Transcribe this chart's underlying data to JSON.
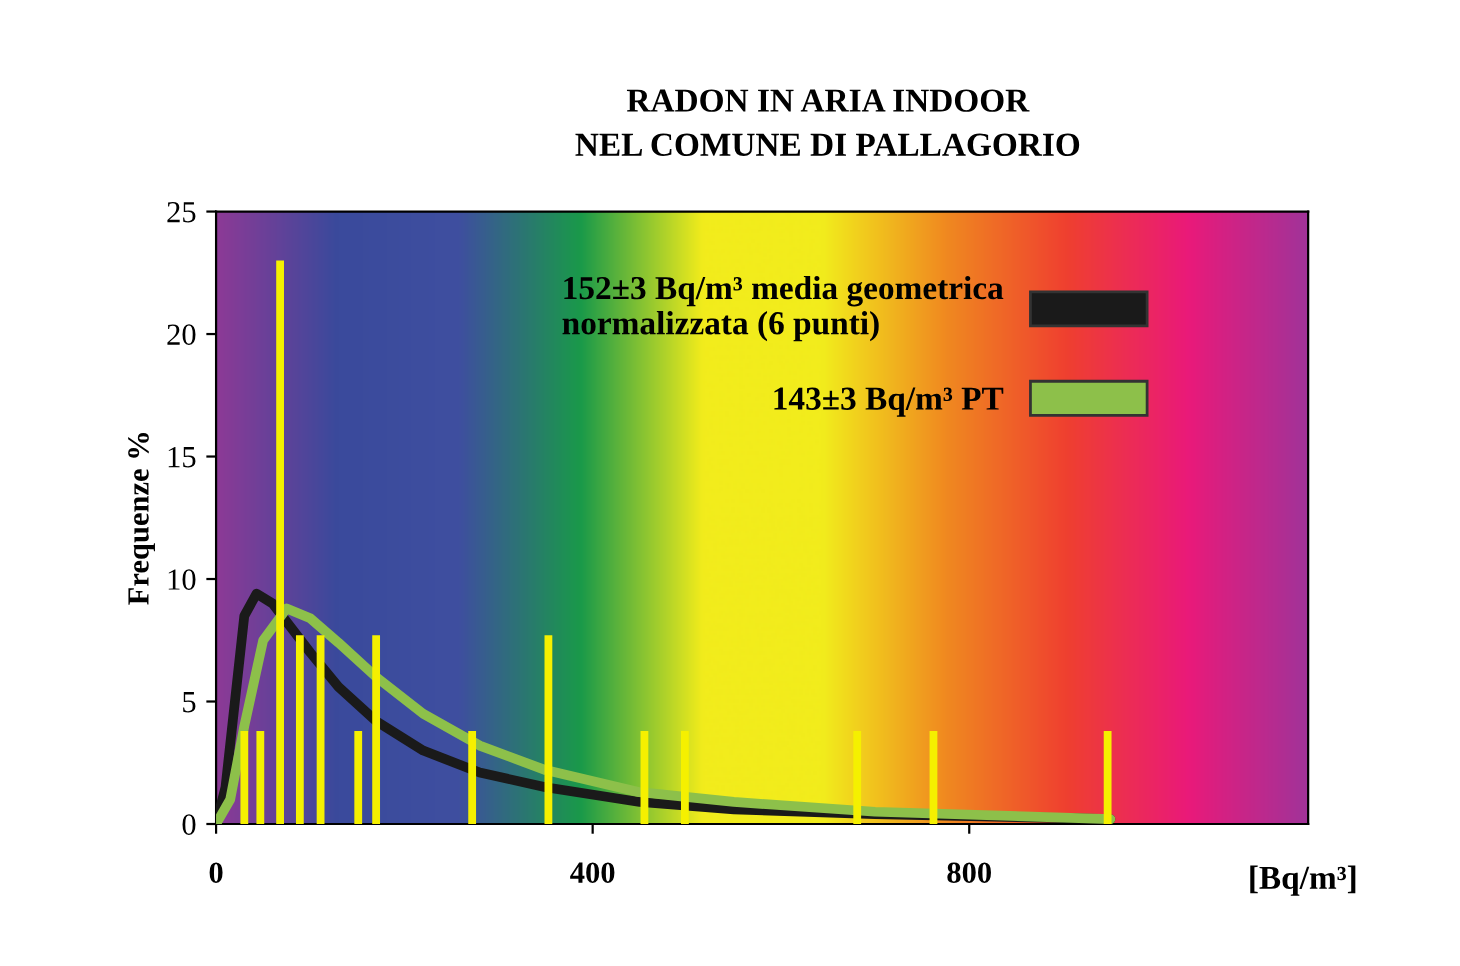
{
  "chart_data": {
    "type": "bar",
    "title": "RADON IN ARIA INDOOR\nNEL COMUNE DI PALLAGORIO",
    "xlabel": "[Bq/m³]",
    "ylabel": "Frequenze %",
    "x": [
      30,
      47,
      68,
      89,
      111,
      151,
      170,
      272,
      353,
      455,
      498,
      681,
      762,
      947
    ],
    "series": [
      {
        "color": "#f5f000",
        "values": [
          3.8,
          3.8,
          23,
          7.7,
          7.7,
          3.8,
          7.7,
          3.8,
          7.7,
          3.8,
          3.8,
          3.8,
          3.8,
          3.8
        ]
      },
      {
        "type": "line",
        "name": "152±3 Bq/m³ media geometrica\nnormalizzata (6 punti)",
        "color": "#1a1a1a",
        "x": [
          0,
          10,
          20,
          30,
          43,
          60,
          80,
          100,
          130,
          170,
          220,
          280,
          350,
          450,
          550,
          700,
          950
        ],
        "values": [
          0,
          1.5,
          5,
          8.5,
          9.4,
          9.0,
          8.0,
          7.0,
          5.6,
          4.2,
          3.0,
          2.1,
          1.5,
          0.9,
          0.6,
          0.4,
          0.2
        ]
      },
      {
        "type": "line",
        "name": "143±3 Bq/m³ PT",
        "color": "#8dc04a",
        "x": [
          0,
          15,
          30,
          50,
          75,
          100,
          130,
          170,
          220,
          280,
          350,
          450,
          550,
          700,
          950
        ],
        "values": [
          0,
          1,
          4,
          7.5,
          8.8,
          8.4,
          7.4,
          6.0,
          4.5,
          3.2,
          2.2,
          1.3,
          0.9,
          0.5,
          0.2
        ]
      }
    ],
    "xlim": [
      0,
      1160
    ],
    "xticks": [
      0,
      400,
      800
    ],
    "ylim": [
      0,
      25
    ],
    "yticks": [
      0,
      5,
      10,
      15,
      20,
      25
    ],
    "grid": false,
    "legend": "right"
  }
}
